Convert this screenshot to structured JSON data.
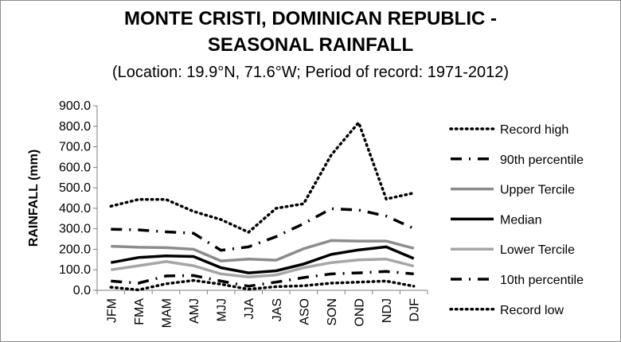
{
  "title_line1": "MONTE CRISTI, DOMINICAN REPUBLIC -",
  "title_line2": "SEASONAL RAINFALL",
  "subtitle": "(Location: 19.9°N, 71.6°W; Period of record: 1971-2012)",
  "chart_data": {
    "type": "line",
    "ylabel": "RAINFALL (mm)",
    "xlabel": "",
    "ylim": [
      0,
      900
    ],
    "yticks": [
      "0.0",
      "100.0",
      "200.0",
      "300.0",
      "400.0",
      "500.0",
      "600.0",
      "700.0",
      "800.0",
      "900.0"
    ],
    "categories": [
      "JFM",
      "FMA",
      "MAM",
      "AMJ",
      "MJJ",
      "JJA",
      "JAS",
      "ASO",
      "SON",
      "OND",
      "NDJ",
      "DJF"
    ],
    "grid": false,
    "legend_position": "right",
    "series": [
      {
        "name": "Record high",
        "style": "dotted",
        "color": "#000000",
        "values": [
          410,
          443,
          443,
          385,
          345,
          283,
          400,
          422,
          660,
          818,
          445,
          475
        ]
      },
      {
        "name": "90th percentile",
        "style": "dashdot",
        "color": "#000000",
        "values": [
          298,
          295,
          285,
          278,
          195,
          212,
          262,
          325,
          398,
          392,
          362,
          302
        ]
      },
      {
        "name": "Upper Tercile",
        "style": "solid",
        "color": "#8c8c8c",
        "values": [
          215,
          210,
          208,
          200,
          143,
          152,
          147,
          203,
          243,
          240,
          240,
          205
        ]
      },
      {
        "name": "Median",
        "style": "solid",
        "color": "#000000",
        "values": [
          135,
          160,
          168,
          165,
          110,
          85,
          95,
          128,
          175,
          197,
          212,
          155
        ]
      },
      {
        "name": "Lower Tercile",
        "style": "solid",
        "color": "#a6a6a6",
        "values": [
          100,
          120,
          140,
          120,
          80,
          65,
          75,
          110,
          135,
          148,
          152,
          118
        ]
      },
      {
        "name": "10th percentile",
        "style": "dashdot",
        "color": "#000000",
        "values": [
          45,
          35,
          70,
          72,
          45,
          20,
          40,
          62,
          80,
          85,
          92,
          80
        ]
      },
      {
        "name": "Record low",
        "style": "dotted",
        "color": "#000000",
        "values": [
          15,
          2,
          32,
          48,
          30,
          5,
          18,
          22,
          35,
          40,
          45,
          20
        ]
      }
    ]
  }
}
